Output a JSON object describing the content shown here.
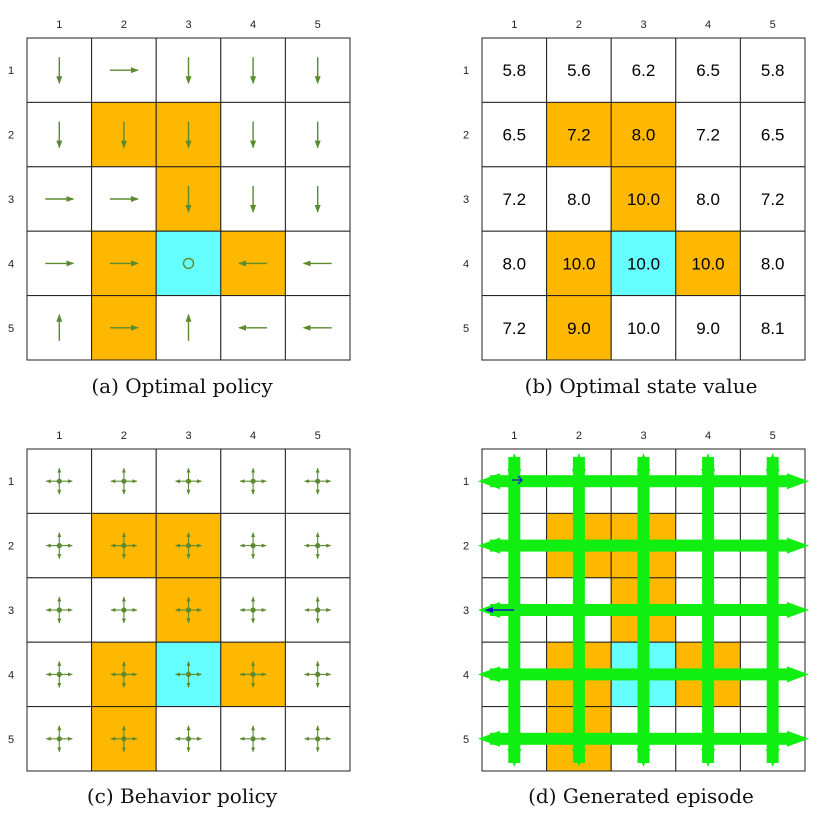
{
  "colors": {
    "forbidden": "#FFB800",
    "target": "#66FFFF",
    "arrow": "#5C8A2E",
    "episode": "#11EE11",
    "episode_start": "#1414C8",
    "grid": "#222222",
    "empty": "#FFFFFF"
  },
  "grid": {
    "col_labels": [
      "1",
      "2",
      "3",
      "4",
      "5"
    ],
    "row_labels": [
      "1",
      "2",
      "3",
      "4",
      "5"
    ],
    "cell_types": [
      [
        "e",
        "e",
        "e",
        "e",
        "e"
      ],
      [
        "e",
        "f",
        "f",
        "e",
        "e"
      ],
      [
        "e",
        "e",
        "f",
        "e",
        "e"
      ],
      [
        "e",
        "f",
        "t",
        "f",
        "e"
      ],
      [
        "e",
        "f",
        "e",
        "e",
        "e"
      ]
    ]
  },
  "panels": {
    "optimal_policy": {
      "caption": "(a) Optimal policy",
      "actions": [
        [
          "down",
          "right",
          "down",
          "down",
          "down"
        ],
        [
          "down",
          "down",
          "down",
          "down",
          "down"
        ],
        [
          "right",
          "right",
          "down",
          "down",
          "down"
        ],
        [
          "right",
          "right",
          "stay",
          "left",
          "left"
        ],
        [
          "up",
          "right",
          "up",
          "left",
          "left"
        ]
      ]
    },
    "state_value": {
      "caption": "(b) Optimal state value",
      "values": [
        [
          "5.8",
          "5.6",
          "6.2",
          "6.5",
          "5.8"
        ],
        [
          "6.5",
          "7.2",
          "8.0",
          "7.2",
          "6.5"
        ],
        [
          "7.2",
          "8.0",
          "10.0",
          "8.0",
          "7.2"
        ],
        [
          "8.0",
          "10.0",
          "10.0",
          "10.0",
          "8.0"
        ],
        [
          "7.2",
          "9.0",
          "10.0",
          "9.0",
          "8.1"
        ]
      ]
    },
    "behavior_policy": {
      "caption": "(c) Behavior policy",
      "policy": "uniform-five-actions"
    },
    "episode": {
      "caption": "(d) Generated episode",
      "start_arrow_row": 3,
      "start_arrow_direction": "left"
    }
  }
}
